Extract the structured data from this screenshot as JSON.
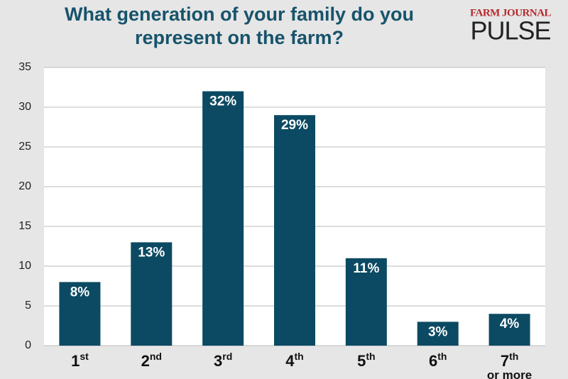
{
  "chart_data": {
    "type": "bar",
    "title": "What generation of your family do you represent on the farm?",
    "logo": {
      "top": "FARM JOURNAL",
      "bottom": "PULSE"
    },
    "categories": [
      "1st",
      "2nd",
      "3rd",
      "4th",
      "5th",
      "6th",
      "7th or more"
    ],
    "values": [
      8,
      13,
      32,
      29,
      11,
      3,
      4
    ],
    "value_labels": [
      "8%",
      "13%",
      "32%",
      "29%",
      "11%",
      "3%",
      "4%"
    ],
    "color": "#0b4a62",
    "ylim": [
      0,
      35
    ],
    "yticks": [
      0,
      5,
      10,
      15,
      20,
      25,
      30,
      35
    ],
    "grid": true
  }
}
